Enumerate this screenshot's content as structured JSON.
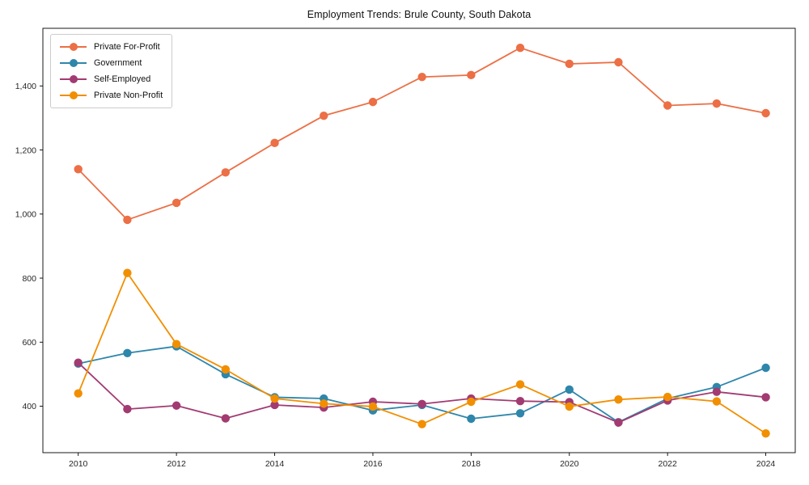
{
  "figure": {
    "background": "#ffffff"
  },
  "chart_data": {
    "type": "line",
    "title": "Employment Trends: Brule County, South Dakota",
    "xlabel": "",
    "ylabel": "",
    "x": [
      2010,
      2011,
      2012,
      2013,
      2014,
      2015,
      2016,
      2017,
      2018,
      2019,
      2020,
      2021,
      2022,
      2023,
      2024
    ],
    "series": [
      {
        "name": "Private For-Profit",
        "color": "#EC6F45",
        "values": [
          1140,
          982,
          1035,
          1130,
          1222,
          1307,
          1350,
          1428,
          1434,
          1519,
          1469,
          1474,
          1339,
          1345,
          1315
        ]
      },
      {
        "name": "Government",
        "color": "#2E86AB",
        "values": [
          533,
          566,
          587,
          500,
          428,
          424,
          387,
          404,
          361,
          378,
          452,
          350,
          424,
          460,
          520
        ]
      },
      {
        "name": "Self-Employed",
        "color": "#A23B72",
        "values": [
          536,
          391,
          402,
          362,
          404,
          396,
          414,
          407,
          424,
          416,
          413,
          349,
          418,
          445,
          428
        ]
      },
      {
        "name": "Private Non-Profit",
        "color": "#F18F01",
        "values": [
          440,
          816,
          594,
          515,
          424,
          408,
          399,
          344,
          414,
          468,
          399,
          421,
          429,
          415,
          315
        ]
      }
    ],
    "xlim": [
      2009.28,
      2024.6
    ],
    "ylim": [
      255,
      1580
    ],
    "xticks": {
      "values": [
        2010,
        2012,
        2014,
        2016,
        2018,
        2020,
        2022,
        2024
      ],
      "labels": [
        "2010",
        "2012",
        "2014",
        "2016",
        "2018",
        "2020",
        "2022",
        "2024"
      ]
    },
    "yticks": {
      "values": [
        400,
        600,
        800,
        1000,
        1200,
        1400
      ],
      "labels": [
        "400",
        "600",
        "800",
        "1,000",
        "1,200",
        "1,400"
      ]
    },
    "grid": false,
    "legend_position": "upper-left",
    "marker": "circle",
    "line_width": 1.8,
    "marker_radius": 5.2,
    "axis_color": "#000000",
    "tick_label_color": "#262626",
    "title_color": "#111111"
  }
}
